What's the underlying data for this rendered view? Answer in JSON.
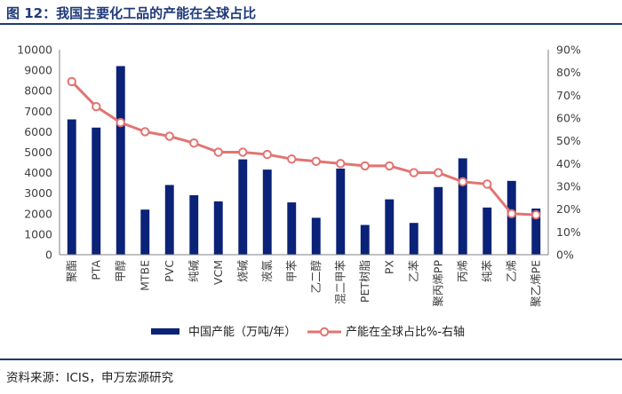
{
  "header": {
    "title": "图 12：我国主要化工品的产能在全球占比"
  },
  "footer": {
    "source": "资料来源：ICIS，申万宏源研究"
  },
  "colors": {
    "bar": "#0a2278",
    "line": "#e27472",
    "marker_fill": "#ffffff",
    "axis_text": "#404040",
    "heading": "#1f3a7a"
  },
  "chart_data": {
    "type": "bar+line",
    "categories": [
      "聚酯",
      "PTA",
      "甲醇",
      "MTBE",
      "PVC",
      "纯碱",
      "VCM",
      "烧碱",
      "液氯",
      "甲苯",
      "乙二醇",
      "混二甲苯",
      "PET树脂",
      "PX",
      "乙苯",
      "聚丙烯PP",
      "丙烯",
      "纯苯",
      "乙烯",
      "聚乙烯PE"
    ],
    "series": [
      {
        "name": "中国产能（万吨/年）",
        "type": "bar",
        "axis": "left",
        "values": [
          6600,
          6200,
          9200,
          2200,
          3400,
          2900,
          2600,
          4650,
          4150,
          2550,
          1800,
          4200,
          1450,
          2700,
          1550,
          3300,
          4700,
          2300,
          3600,
          2250
        ]
      },
      {
        "name": "产能在全球占比%-右轴",
        "type": "line",
        "axis": "right",
        "values": [
          76,
          65,
          58,
          54,
          52,
          49,
          45,
          45,
          44,
          42,
          41,
          40,
          39,
          39,
          36,
          36,
          32,
          31,
          18,
          17.5
        ]
      }
    ],
    "y_left": {
      "min": 0,
      "max": 10000,
      "ticks": [
        0,
        1000,
        2000,
        3000,
        4000,
        5000,
        6000,
        7000,
        8000,
        9000,
        10000
      ]
    },
    "y_right": {
      "min": 0,
      "max": 90,
      "ticks": [
        "0%",
        "10%",
        "20%",
        "30%",
        "40%",
        "50%",
        "60%",
        "70%",
        "80%",
        "90%"
      ]
    },
    "legend_position": "bottom",
    "grid": false
  }
}
